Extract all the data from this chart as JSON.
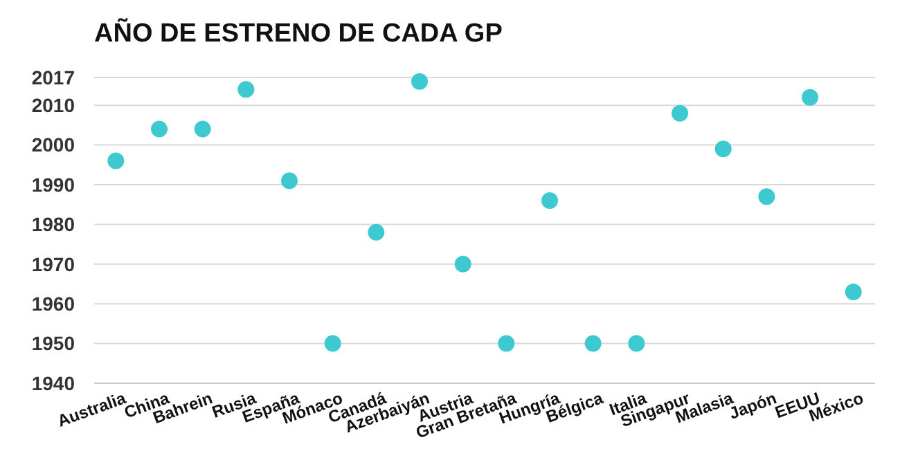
{
  "chart_data": {
    "type": "scatter",
    "title": "AÑO DE ESTRENO DE CADA GP",
    "categories": [
      "Australia",
      "China",
      "Bahrein",
      "Rusia",
      "España",
      "Mónaco",
      "Canadá",
      "Azerbaiyán",
      "Austria",
      "Gran Bretaña",
      "Hungría",
      "Bélgica",
      "Italia",
      "Singapur",
      "Malasia",
      "Japón",
      "EEUU",
      "México"
    ],
    "values": [
      1996,
      2004,
      2004,
      2014,
      1991,
      1950,
      1978,
      2016,
      1970,
      1950,
      1986,
      1950,
      1950,
      2008,
      1999,
      1987,
      2012,
      1963
    ],
    "color": "#3ec8d0",
    "marker": "circle",
    "ylim": [
      1940,
      2017
    ],
    "yticks": [
      1940,
      1950,
      1960,
      1970,
      1980,
      1990,
      2000,
      2010,
      2017
    ],
    "grid": "y"
  }
}
